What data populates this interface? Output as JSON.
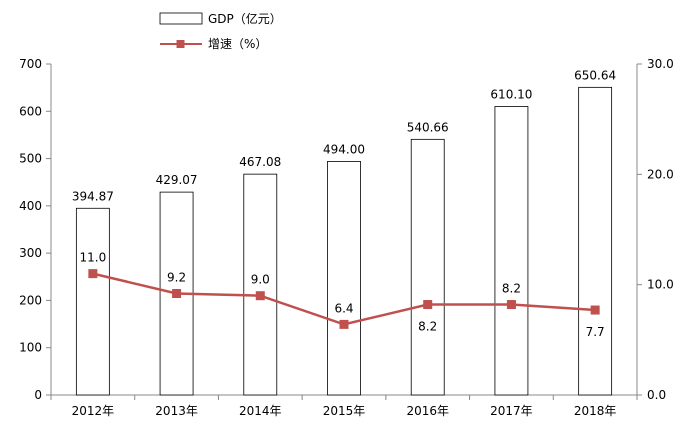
{
  "chart_data": {
    "type": "bar+line",
    "categories": [
      "2012年",
      "2013年",
      "2014年",
      "2015年",
      "2016年",
      "2017年",
      "2018年"
    ],
    "series": [
      {
        "name": "GDP（亿元）",
        "type": "bar",
        "axis": "left",
        "values": [
          394.87,
          429.07,
          467.08,
          494.0,
          540.66,
          610.1,
          650.64
        ],
        "labels": [
          "394.87",
          "429.07",
          "467.08",
          "494.00",
          "540.66",
          "610.10",
          "650.64"
        ],
        "color": "#ffffff",
        "stroke": "#000000"
      },
      {
        "name": "增速（%）",
        "type": "line",
        "axis": "right",
        "values": [
          11.0,
          9.2,
          9.0,
          6.4,
          8.2,
          8.2,
          7.7
        ],
        "labels": [
          "11.0",
          "9.2",
          "9.0",
          "6.4",
          "8.2",
          "8.2",
          "7.7"
        ],
        "label_position": [
          "above",
          "above",
          "above",
          "above",
          "below",
          "above",
          "below"
        ],
        "color": "#c0504d"
      }
    ],
    "y_left": {
      "min": 0,
      "max": 700,
      "step": 100,
      "ticks": [
        "0",
        "100",
        "200",
        "300",
        "400",
        "500",
        "600",
        "700"
      ]
    },
    "y_right": {
      "min": 0,
      "max": 30,
      "step": 10,
      "ticks": [
        "0.0",
        "10.0",
        "20.0",
        "30.0"
      ]
    },
    "legend": "top-left",
    "grid": false
  }
}
